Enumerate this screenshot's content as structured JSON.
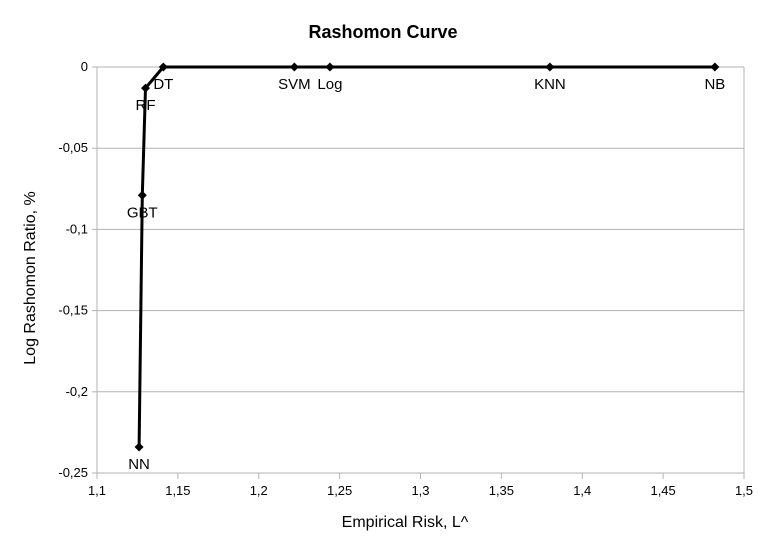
{
  "chart_data": {
    "type": "line",
    "title": "Rashomon Curve",
    "xlabel": "Empirical Risk, L^",
    "ylabel": "Log Rashomon Ratio, %",
    "xlim": [
      1.1,
      1.5
    ],
    "ylim": [
      -0.25,
      0
    ],
    "x_ticks": [
      1.1,
      1.15,
      1.2,
      1.25,
      1.3,
      1.35,
      1.4,
      1.45,
      1.5
    ],
    "x_tick_labels": [
      "1,1",
      "1,15",
      "1,2",
      "1,25",
      "1,3",
      "1,35",
      "1,4",
      "1,45",
      "1,5"
    ],
    "y_ticks": [
      0,
      -0.05,
      -0.1,
      -0.15,
      -0.2,
      -0.25
    ],
    "y_tick_labels": [
      "0",
      "-0,05",
      "-0,1",
      "-0,15",
      "-0,2",
      "-0,25"
    ],
    "grid": "horizontal",
    "marker": "diamond",
    "line_color": "#000000",
    "points": [
      {
        "label": "NN",
        "x": 1.126,
        "y": -0.234
      },
      {
        "label": "GBT",
        "x": 1.128,
        "y": -0.079
      },
      {
        "label": "RF",
        "x": 1.13,
        "y": -0.013
      },
      {
        "label": "DT",
        "x": 1.141,
        "y": 0
      },
      {
        "label": "SVM",
        "x": 1.222,
        "y": 0
      },
      {
        "label": "Log",
        "x": 1.244,
        "y": 0
      },
      {
        "label": "KNN",
        "x": 1.38,
        "y": 0
      },
      {
        "label": "NB",
        "x": 1.482,
        "y": 0
      }
    ]
  }
}
